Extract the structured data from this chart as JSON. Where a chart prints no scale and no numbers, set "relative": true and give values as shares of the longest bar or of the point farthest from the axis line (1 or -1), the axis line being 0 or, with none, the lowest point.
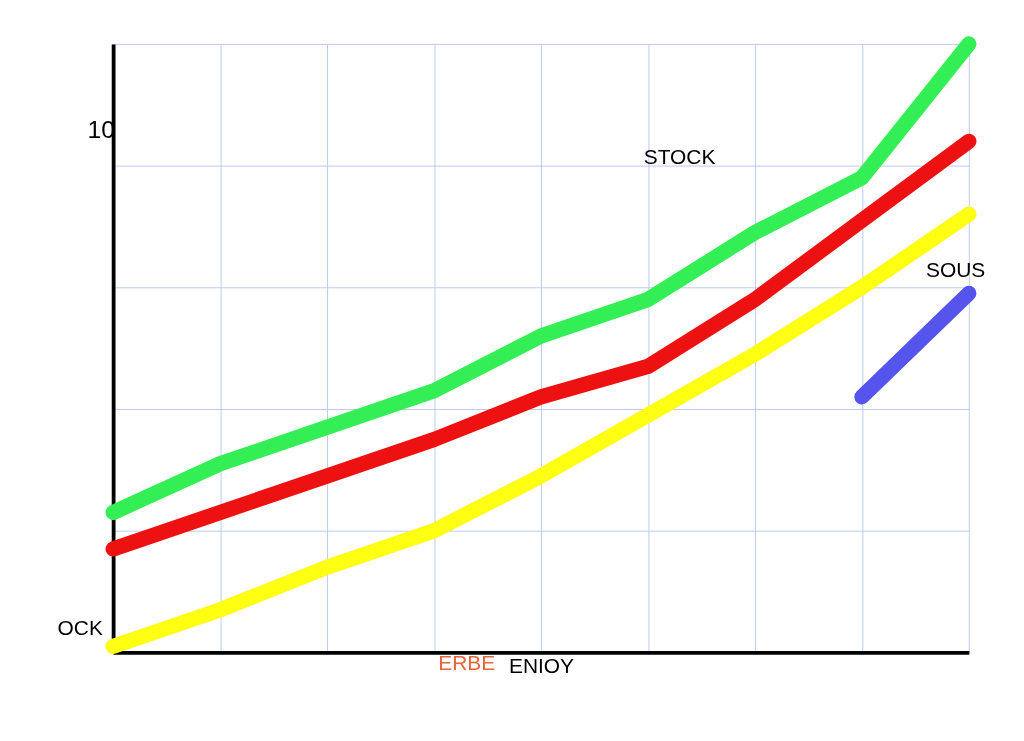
{
  "chart_data": {
    "type": "line",
    "relative": true,
    "xlabel": "ENIOY",
    "categories": [
      null,
      null,
      null,
      null,
      null,
      null,
      null,
      null,
      null
    ],
    "series": [
      {
        "color": "#33ee55",
        "values": [
          0.23,
          0.31,
          0.37,
          0.43,
          0.52,
          0.58,
          0.69,
          0.78,
          1.0
        ]
      },
      {
        "color": "#ee1111",
        "values": [
          0.17,
          0.23,
          0.29,
          0.35,
          0.42,
          0.47,
          0.58,
          0.71,
          0.84
        ]
      },
      {
        "color": "#ffff11",
        "values": [
          0.01,
          0.07,
          0.14,
          0.2,
          0.29,
          0.39,
          0.49,
          0.6,
          0.72
        ]
      },
      {
        "color": "#5555ee",
        "values": [
          null,
          null,
          null,
          null,
          null,
          null,
          null,
          0.42,
          0.59
        ]
      }
    ],
    "annotations": [
      "10",
      "STOCK",
      "SOUS",
      "OCK",
      "ERBE"
    ],
    "grid": true,
    "legend": false,
    "line_style": "solid"
  }
}
